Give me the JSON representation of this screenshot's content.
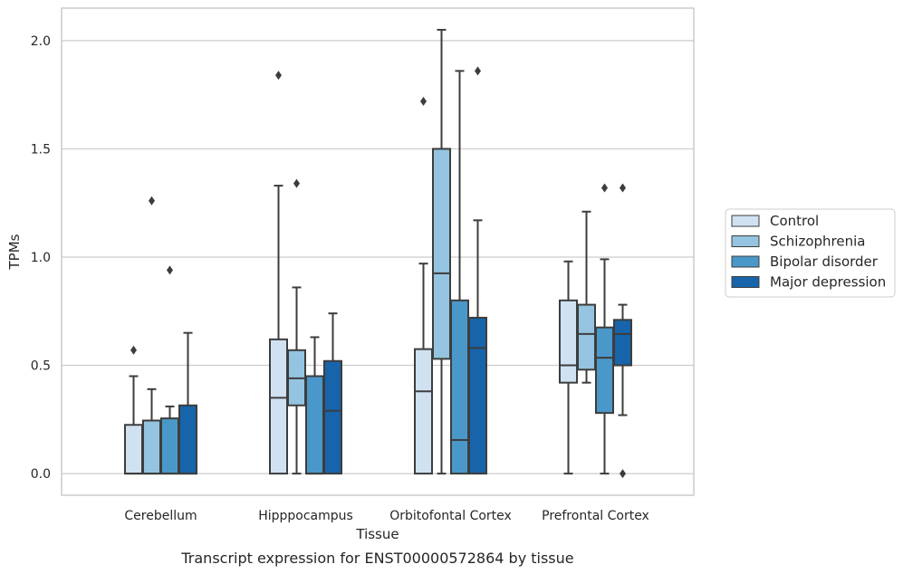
{
  "chart_data": {
    "type": "box",
    "caption": "Transcript expression for ENST00000572864 by tissue",
    "xlabel": "Tissue",
    "ylabel": "TPMs",
    "ylim": [
      -0.1,
      2.15
    ],
    "yticks": [
      "0.0",
      "0.5",
      "1.0",
      "1.5",
      "2.0"
    ],
    "grid": "horizontal",
    "legend_position": "right",
    "categories": [
      "Cerebellum",
      "Hipppocampus",
      "Orbitofontal Cortex",
      "Prefrontal Cortex"
    ],
    "series": [
      {
        "name": "Control",
        "color": "#d0e1f2",
        "boxes": [
          {
            "whislo": 0.0,
            "q1": 0.0,
            "med": 0.0,
            "q3": 0.225,
            "whishi": 0.45,
            "fliers": [
              0.57
            ]
          },
          {
            "whislo": 0.0,
            "q1": 0.0,
            "med": 0.35,
            "q3": 0.62,
            "whishi": 1.33,
            "fliers": [
              1.84
            ]
          },
          {
            "whislo": 0.0,
            "q1": 0.0,
            "med": 0.38,
            "q3": 0.575,
            "whishi": 0.97,
            "fliers": [
              1.72
            ]
          },
          {
            "whislo": 0.0,
            "q1": 0.42,
            "med": 0.5,
            "q3": 0.8,
            "whishi": 0.98,
            "fliers": []
          }
        ]
      },
      {
        "name": "Schizophrenia",
        "color": "#94c4df",
        "boxes": [
          {
            "whislo": 0.0,
            "q1": 0.0,
            "med": 0.0,
            "q3": 0.245,
            "whishi": 0.39,
            "fliers": [
              1.26
            ]
          },
          {
            "whislo": 0.0,
            "q1": 0.315,
            "med": 0.44,
            "q3": 0.57,
            "whishi": 0.86,
            "fliers": [
              1.34
            ]
          },
          {
            "whislo": 0.0,
            "q1": 0.53,
            "med": 0.925,
            "q3": 1.5,
            "whishi": 2.05,
            "fliers": []
          },
          {
            "whislo": 0.42,
            "q1": 0.48,
            "med": 0.645,
            "q3": 0.78,
            "whishi": 1.21,
            "fliers": []
          }
        ]
      },
      {
        "name": "Bipolar disorder",
        "color": "#4a98c9",
        "boxes": [
          {
            "whislo": 0.0,
            "q1": 0.0,
            "med": 0.0,
            "q3": 0.255,
            "whishi": 0.31,
            "fliers": [
              0.94
            ]
          },
          {
            "whislo": 0.0,
            "q1": 0.0,
            "med": 0.0,
            "q3": 0.45,
            "whishi": 0.63,
            "fliers": []
          },
          {
            "whislo": 0.0,
            "q1": 0.0,
            "med": 0.155,
            "q3": 0.8,
            "whishi": 1.86,
            "fliers": []
          },
          {
            "whislo": 0.0,
            "q1": 0.28,
            "med": 0.535,
            "q3": 0.675,
            "whishi": 0.99,
            "fliers": [
              1.32
            ]
          }
        ]
      },
      {
        "name": "Major depression",
        "color": "#1764ab",
        "boxes": [
          {
            "whislo": 0.0,
            "q1": 0.0,
            "med": 0.0,
            "q3": 0.315,
            "whishi": 0.65,
            "fliers": []
          },
          {
            "whislo": 0.0,
            "q1": 0.0,
            "med": 0.29,
            "q3": 0.52,
            "whishi": 0.74,
            "fliers": []
          },
          {
            "whislo": 0.0,
            "q1": 0.0,
            "med": 0.58,
            "q3": 0.72,
            "whishi": 1.17,
            "fliers": [
              1.86
            ]
          },
          {
            "whislo": 0.27,
            "q1": 0.5,
            "med": 0.645,
            "q3": 0.71,
            "whishi": 0.78,
            "fliers": [
              1.32,
              0.0
            ]
          }
        ]
      }
    ]
  }
}
